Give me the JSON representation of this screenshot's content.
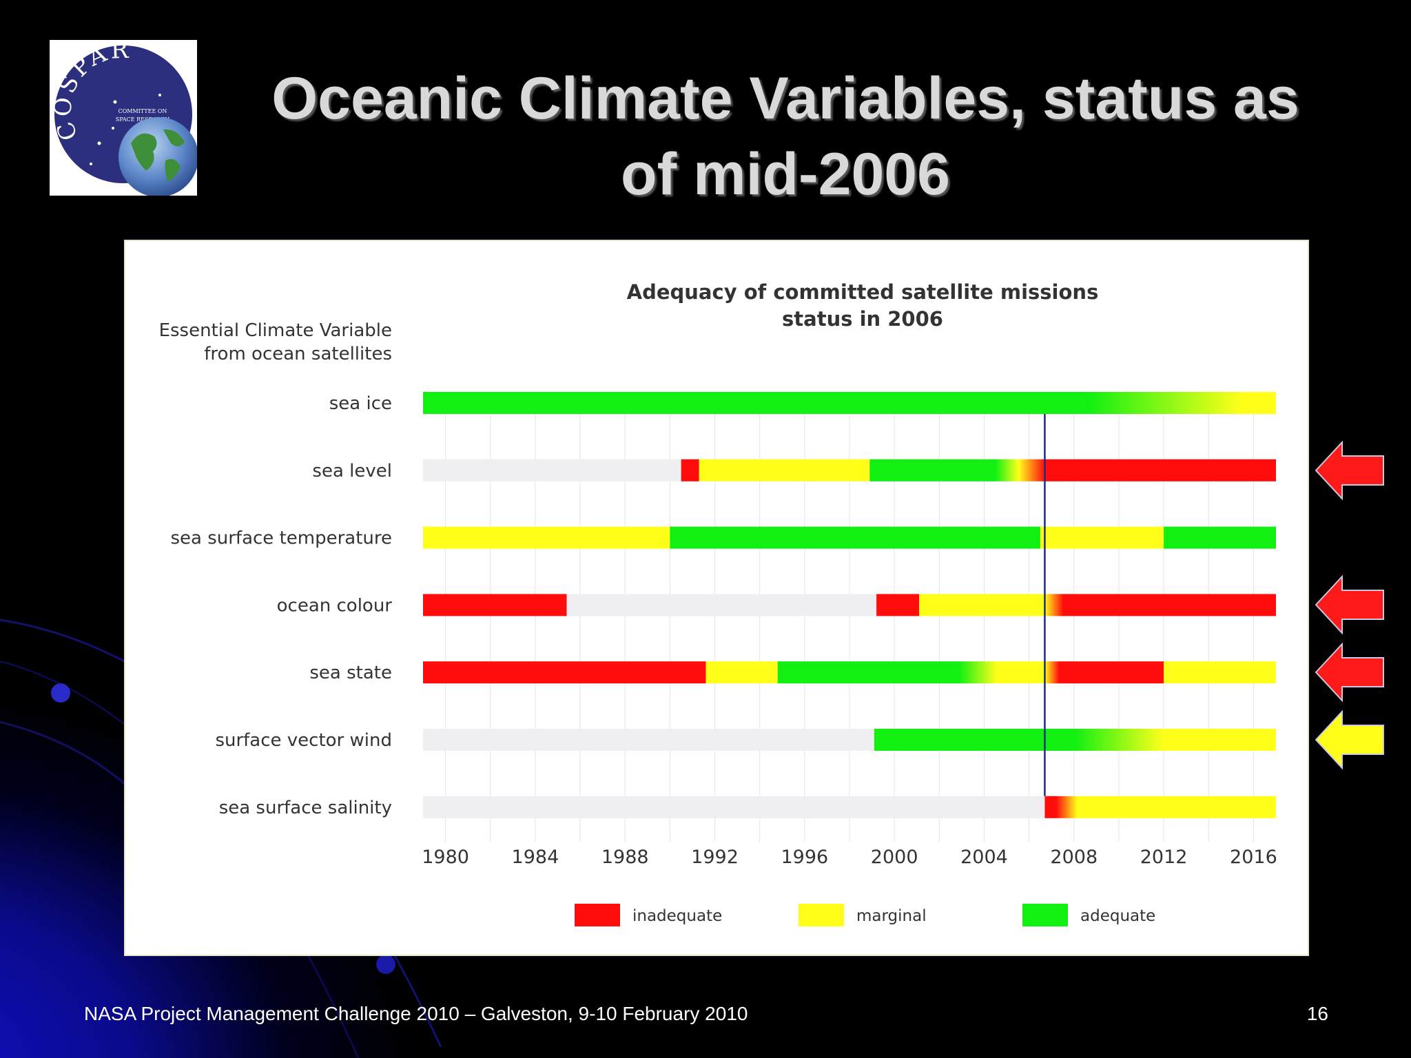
{
  "slide": {
    "title": "Oceanic Climate Variables, status as of mid-2006",
    "footer_left": "NASA Project Management Challenge 2010 – Galveston, 9-10 February 2010",
    "page_number": "16"
  },
  "logo": {
    "text_top": "COSPAR",
    "text_line1": "COMMITTEE ON",
    "text_line2": "SPACE RESEARCH"
  },
  "colors": {
    "inadequate": "#ff0d0d",
    "marginal": "#ffff1a",
    "adequate": "#12f012",
    "no_data": "#efeff1",
    "reference_line": "#1a2a8c"
  },
  "chart_data": {
    "type": "timeline",
    "title_line1": "Adequacy of committed satellite missions",
    "title_line2": "status in 2006",
    "ylabel_line1": "Essential Climate Variable",
    "ylabel_line2": "from ocean satellites",
    "x_range": [
      1979,
      2017
    ],
    "x_ticks": [
      1980,
      1984,
      1988,
      1992,
      1996,
      2000,
      2004,
      2008,
      2012,
      2016
    ],
    "reference_year": 2006.7,
    "legend": [
      {
        "key": "inadequate",
        "label": "inadequate"
      },
      {
        "key": "marginal",
        "label": "marginal"
      },
      {
        "key": "adequate",
        "label": "adequate"
      }
    ],
    "series": [
      {
        "name": "sea ice",
        "segments": [
          {
            "from": 1979,
            "to": 2017,
            "stops": [
              [
                0,
                "adequate"
              ],
              [
                0.78,
                "adequate"
              ],
              [
                0.96,
                "marginal"
              ],
              [
                1,
                "marginal"
              ]
            ]
          }
        ]
      },
      {
        "name": "sea level",
        "segments": [
          {
            "from": 1979,
            "to": 1990.5,
            "status": "no_data"
          },
          {
            "from": 1990.5,
            "to": 1991.3,
            "status": "inadequate"
          },
          {
            "from": 1991.3,
            "to": 1998.9,
            "status": "marginal"
          },
          {
            "from": 1998.9,
            "to": 2006.7,
            "stops": [
              [
                0,
                "adequate"
              ],
              [
                0.72,
                "adequate"
              ],
              [
                0.85,
                "marginal"
              ],
              [
                1,
                "inadequate"
              ]
            ]
          },
          {
            "from": 2006.7,
            "to": 2017,
            "status": "inadequate"
          }
        ]
      },
      {
        "name": "sea surface temperature",
        "segments": [
          {
            "from": 1979,
            "to": 1990,
            "status": "marginal"
          },
          {
            "from": 1990,
            "to": 2006.5,
            "status": "adequate"
          },
          {
            "from": 2006.5,
            "to": 2012,
            "status": "marginal"
          },
          {
            "from": 2012,
            "to": 2017,
            "status": "adequate"
          }
        ]
      },
      {
        "name": "ocean colour",
        "segments": [
          {
            "from": 1979,
            "to": 1985.4,
            "status": "inadequate"
          },
          {
            "from": 1985.4,
            "to": 1999.2,
            "status": "no_data"
          },
          {
            "from": 1999.2,
            "to": 2001.1,
            "status": "inadequate"
          },
          {
            "from": 2001.1,
            "to": 2006.7,
            "status": "marginal"
          },
          {
            "from": 2006.7,
            "to": 2017,
            "stops": [
              [
                0,
                "marginal"
              ],
              [
                0.08,
                "inadequate"
              ],
              [
                1,
                "inadequate"
              ]
            ]
          }
        ]
      },
      {
        "name": "sea state",
        "segments": [
          {
            "from": 1979,
            "to": 1991.6,
            "status": "inadequate"
          },
          {
            "from": 1991.6,
            "to": 1994.8,
            "status": "marginal"
          },
          {
            "from": 1994.8,
            "to": 2006.7,
            "stops": [
              [
                0,
                "adequate"
              ],
              [
                0.68,
                "adequate"
              ],
              [
                0.82,
                "marginal"
              ],
              [
                1,
                "marginal"
              ]
            ]
          },
          {
            "from": 2006.7,
            "to": 2012,
            "stops": [
              [
                0,
                "marginal"
              ],
              [
                0.12,
                "inadequate"
              ],
              [
                1,
                "inadequate"
              ]
            ]
          },
          {
            "from": 2012,
            "to": 2017,
            "status": "marginal"
          }
        ]
      },
      {
        "name": "surface vector wind",
        "segments": [
          {
            "from": 1979,
            "to": 1999.1,
            "status": "no_data"
          },
          {
            "from": 1999.1,
            "to": 2017,
            "stops": [
              [
                0,
                "adequate"
              ],
              [
                0.5,
                "adequate"
              ],
              [
                0.72,
                "marginal"
              ],
              [
                1,
                "marginal"
              ]
            ]
          }
        ]
      },
      {
        "name": "sea surface salinity",
        "segments": [
          {
            "from": 1979,
            "to": 2006.7,
            "status": "no_data"
          },
          {
            "from": 2006.7,
            "to": 2017,
            "stops": [
              [
                0,
                "inadequate"
              ],
              [
                0.05,
                "inadequate"
              ],
              [
                0.14,
                "marginal"
              ],
              [
                1,
                "marginal"
              ]
            ]
          }
        ]
      }
    ]
  },
  "arrows": [
    {
      "target": "sea level",
      "color": "red"
    },
    {
      "target": "ocean colour",
      "color": "red"
    },
    {
      "target": "sea state",
      "color": "red"
    },
    {
      "target": "surface vector wind",
      "color": "yellow"
    }
  ]
}
